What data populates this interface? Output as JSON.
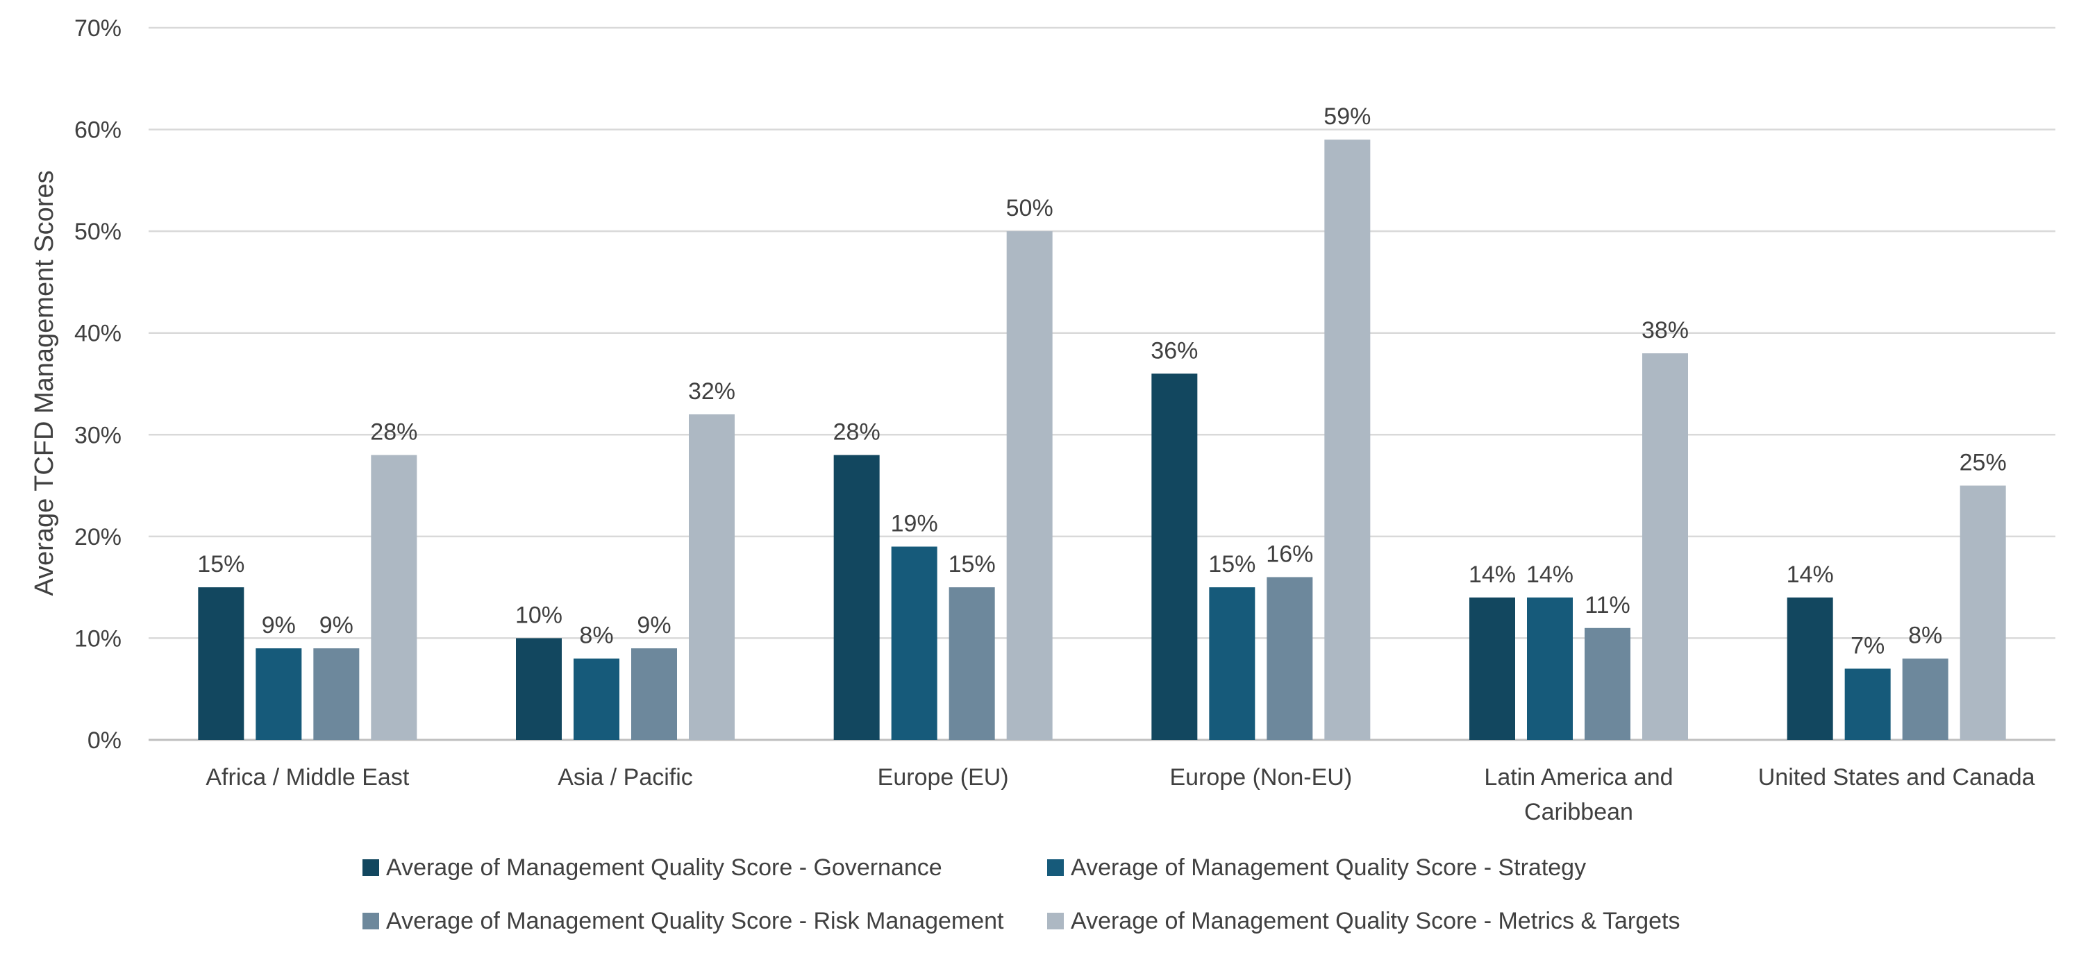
{
  "chart_data": {
    "type": "bar",
    "title": "",
    "xlabel": "",
    "ylabel": "Average TCFD Management Scores",
    "ylim": [
      0,
      70
    ],
    "ytick_step": 10,
    "ytick_suffix": "%",
    "grid": true,
    "legend_position": "bottom",
    "categories": [
      [
        "Africa / Middle East"
      ],
      [
        "Asia / Pacific"
      ],
      [
        "Europe (EU)"
      ],
      [
        "Europe (Non-EU)"
      ],
      [
        "Latin America and",
        "Caribbean"
      ],
      [
        "United States and Canada"
      ]
    ],
    "series": [
      {
        "name": "Average of Management Quality Score - Governance",
        "color": "#12475f",
        "values": [
          15,
          10,
          28,
          36,
          14,
          14
        ]
      },
      {
        "name": "Average of Management Quality Score - Strategy",
        "color": "#165a7a",
        "values": [
          9,
          8,
          19,
          15,
          14,
          7
        ]
      },
      {
        "name": "Average of Management Quality Score - Risk Management",
        "color": "#6d889c",
        "values": [
          9,
          9,
          15,
          16,
          11,
          8
        ]
      },
      {
        "name": "Average of Management Quality Score - Metrics & Targets",
        "color": "#adb8c3",
        "values": [
          28,
          32,
          50,
          59,
          38,
          25
        ]
      }
    ]
  }
}
